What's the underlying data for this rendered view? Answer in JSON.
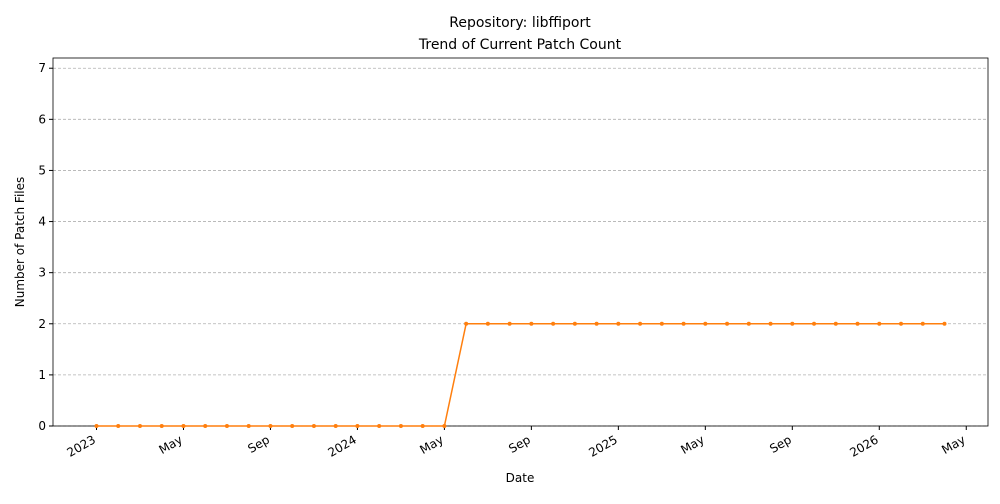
{
  "chart_data": {
    "type": "line",
    "title": "Repository: libffiport",
    "subtitle": "Trend of Current Patch Count",
    "x_label": "Date",
    "y_label": "Number of Patch Files",
    "x": [
      "2023-01",
      "2023-02",
      "2023-03",
      "2023-04",
      "2023-05",
      "2023-06",
      "2023-07",
      "2023-08",
      "2023-09",
      "2023-10",
      "2023-11",
      "2023-12",
      "2024-01",
      "2024-02",
      "2024-03",
      "2024-04",
      "2024-05",
      "2024-06",
      "2024-07",
      "2024-08",
      "2024-09",
      "2024-10",
      "2024-11",
      "2024-12",
      "2025-01",
      "2025-02",
      "2025-03",
      "2025-04",
      "2025-05",
      "2025-06",
      "2025-07",
      "2025-08",
      "2025-09",
      "2025-10",
      "2025-11",
      "2025-12",
      "2026-01",
      "2026-02",
      "2026-03",
      "2026-04"
    ],
    "series": [
      {
        "color": "#ff7f0e",
        "values": [
          0,
          0,
          0,
          0,
          0,
          0,
          0,
          0,
          0,
          0,
          0,
          0,
          0,
          0,
          0,
          0,
          0,
          2,
          2,
          2,
          2,
          2,
          2,
          2,
          2,
          2,
          2,
          2,
          2,
          2,
          2,
          2,
          2,
          2,
          2,
          2,
          2,
          2,
          2,
          2
        ]
      }
    ],
    "xlim": [
      "2022-11",
      "2026-06"
    ],
    "xticks": [
      {
        "value": "2023-01",
        "label": "2023"
      },
      {
        "value": "2023-05",
        "label": "May"
      },
      {
        "value": "2023-09",
        "label": "Sep"
      },
      {
        "value": "2024-01",
        "label": "2024"
      },
      {
        "value": "2024-05",
        "label": "May"
      },
      {
        "value": "2024-09",
        "label": "Sep"
      },
      {
        "value": "2025-01",
        "label": "2025"
      },
      {
        "value": "2025-05",
        "label": "May"
      },
      {
        "value": "2025-09",
        "label": "Sep"
      },
      {
        "value": "2026-01",
        "label": "2026"
      },
      {
        "value": "2026-05",
        "label": "May"
      }
    ],
    "ylim": [
      0,
      7.2
    ],
    "yticks": [
      0,
      1,
      2,
      3,
      4,
      5,
      6,
      7
    ],
    "grid": true
  }
}
